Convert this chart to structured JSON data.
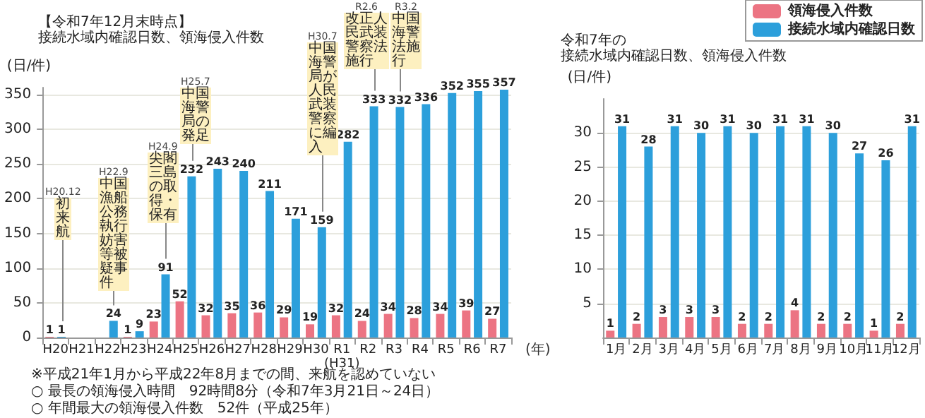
{
  "chart_data": [
    {
      "type": "bar",
      "title": "【令和7年12月末時点】",
      "subtitle": "接続水域内確認日数、領海侵入件数",
      "xlabel": "(年)",
      "ylabel": "(日/件)",
      "categories": [
        "H20",
        "H21",
        "H22",
        "H23",
        "H24",
        "H25",
        "H26",
        "H27",
        "H28",
        "H29",
        "H30",
        "R1\n(H31)",
        "R2",
        "R3",
        "R4",
        "R5",
        "R6",
        "R7"
      ],
      "series": [
        {
          "color": "#ec7483",
          "values": [
            1,
            null,
            null,
            1,
            23,
            52,
            32,
            35,
            36,
            29,
            19,
            32,
            24,
            34,
            28,
            34,
            39,
            27
          ]
        },
        {
          "color": "#2c9fdb",
          "values": [
            1,
            null,
            24,
            9,
            91,
            232,
            243,
            240,
            211,
            171,
            159,
            282,
            333,
            332,
            336,
            352,
            355,
            357
          ]
        }
      ],
      "ylim": [
        0,
        360
      ],
      "yticks": [
        0,
        50,
        100,
        150,
        200,
        250,
        300,
        350
      ],
      "grid": "y",
      "data_labels": true,
      "annotations": [
        "初来航",
        "中国漁船公務執行妨害等被疑事件",
        "尖閣三島の取得・保有",
        "中国海警局の発足",
        "中国海警局が人民武装警察に編入",
        "改正人民武装警察法施行",
        "中国海警法施行",
        "H20.12",
        "H22.9",
        "H24.9",
        "H25.7",
        "H30.7",
        "R2.6",
        "R3.2",
        "※平成21年1月から平成22年8月までの間、来航を認めていない",
        "○ 最長の領海侵入時間　92時間8分（令和7年3月21日～24日）",
        "○ 年間最大の領海侵入件数　52件（平成25年）"
      ]
    },
    {
      "type": "bar",
      "title": "令和7年の",
      "subtitle": "接続水域内確認日数、領海侵入件数",
      "ylabel": "(日/件)",
      "categories": [
        "1月",
        "2月",
        "3月",
        "4月",
        "5月",
        "6月",
        "7月",
        "8月",
        "9月",
        "10月",
        "11月",
        "12月"
      ],
      "series": [
        {
          "name": "領海侵入件数",
          "color": "#ec7483",
          "values": [
            1,
            2,
            3,
            3,
            3,
            2,
            2,
            4,
            2,
            2,
            1,
            2
          ]
        },
        {
          "name": "接続水域内確認日数",
          "color": "#2c9fdb",
          "values": [
            31,
            28,
            31,
            30,
            31,
            30,
            31,
            31,
            30,
            27,
            26,
            31
          ]
        }
      ],
      "ylim": [
        0,
        35
      ],
      "yticks": [
        5,
        10,
        15,
        20,
        25,
        30
      ],
      "grid": "y",
      "data_labels": true,
      "legend": "top right"
    }
  ]
}
